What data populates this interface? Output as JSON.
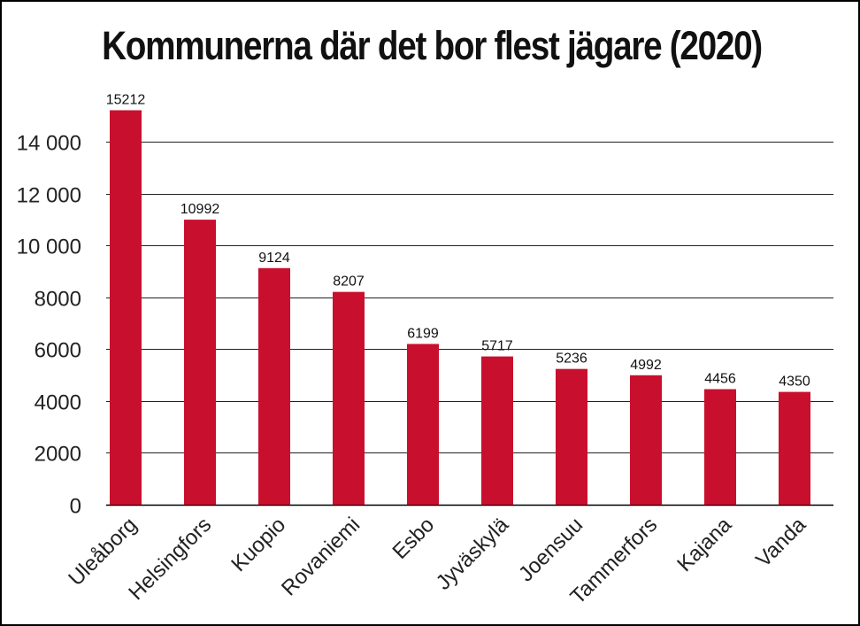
{
  "chart_data": {
    "type": "bar",
    "title": "Kommunerna där det bor flest jägare (2020)",
    "categories": [
      "Uleåborg",
      "Helsingfors",
      "Kuopio",
      "Rovaniemi",
      "Esbo",
      "Jyväskylä",
      "Joensuu",
      "Tammerfors",
      "Kajana",
      "Vanda"
    ],
    "values": [
      15212,
      10992,
      9124,
      8207,
      6199,
      5717,
      5236,
      4992,
      4456,
      4350
    ],
    "value_labels": [
      "15212",
      "10992",
      "9124",
      "8207",
      "6199",
      "5717",
      "5236",
      "4992",
      "4456",
      "4350"
    ],
    "y_ticks": [
      0,
      2000,
      4000,
      6000,
      8000,
      10000,
      12000,
      14000
    ],
    "y_tick_labels": [
      "0",
      "2000",
      "4000",
      "6000",
      "8000",
      "10 000",
      "12 000",
      "14 000"
    ],
    "ylim": [
      0,
      14000
    ],
    "grid": true,
    "xlabel": "",
    "ylabel": "",
    "colors": {
      "bar": "#c8102e",
      "grid": "#222222",
      "axis": "#000000"
    }
  }
}
